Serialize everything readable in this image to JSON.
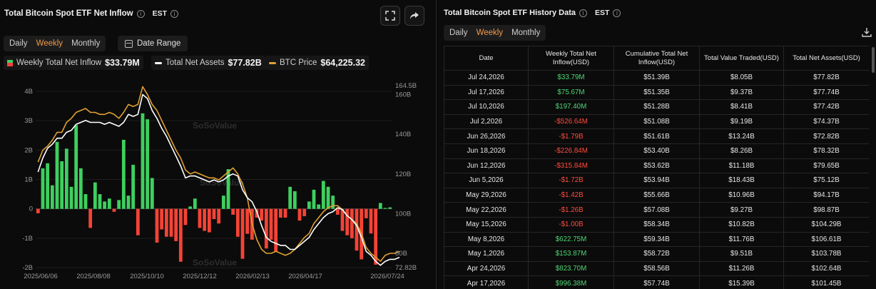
{
  "left": {
    "title": "Total Bitcoin Spot ETF Net Inflow",
    "timezone": "EST",
    "tabs": [
      "Daily",
      "Weekly",
      "Monthly"
    ],
    "active_tab": "Weekly",
    "date_range_label": "Date Range",
    "legend": {
      "inflow_label": "Weekly Total Net Inflow",
      "inflow_value": "$33.79M",
      "assets_label": "Total Net Assets",
      "assets_value": "$77.82B",
      "btc_label": "BTC Price",
      "btc_value": "$64,225.32"
    },
    "watermark": "SoSoValue",
    "colors": {
      "positive": "#3fcf5f",
      "negative": "#f44336",
      "assets_line": "#ffffff",
      "btc_line": "#e0a030",
      "accent": "#f2994a"
    }
  },
  "chart_data": {
    "type": "bar",
    "y_left_ticks": [
      "4B",
      "3B",
      "2B",
      "1B",
      "0",
      "-1B",
      "-2B"
    ],
    "y_right_ticks": [
      "164.5B",
      "160B",
      "140B",
      "120B",
      "100B",
      "80B",
      "72.82B"
    ],
    "x_ticks": [
      "2025/06/06",
      "2025/08/08",
      "2025/10/10",
      "2025/12/12",
      "2026/02/13",
      "2026/04/17",
      "2026/07/24"
    ],
    "ylim_left": [
      -2,
      4
    ],
    "ylim_right": [
      72.82,
      164.5
    ],
    "series": [
      {
        "name": "Weekly Total Net Inflow",
        "type": "bar",
        "values": [
          -0.15,
          1.38,
          1.55,
          0.8,
          2.28,
          1.62,
          2.05,
          0.75,
          2.85,
          1.38,
          0.5,
          -0.65,
          0.9,
          0.5,
          0.25,
          0.35,
          -0.1,
          0.3,
          2.35,
          0.45,
          1.5,
          -0.9,
          3.25,
          3.05,
          1.05,
          -1.15,
          -0.7,
          -0.95,
          -0.95,
          -1.1,
          -1.8,
          -0.55,
          0.08,
          0.35,
          -0.65,
          -0.75,
          -0.8,
          -0.35,
          -0.5,
          0.45,
          1.35,
          -0.2,
          -0.95,
          -1.7,
          -0.85,
          -1.05,
          -0.3,
          -0.4,
          -1.35,
          -1.05,
          -1.45,
          -0.3,
          -0.3,
          0.75,
          0.6,
          -0.4,
          -0.25,
          0.25,
          0.65,
          0.15,
          0.95,
          0.75,
          0.45,
          -0.2,
          -0.75,
          -0.9,
          -1.0,
          -1.42,
          -1.72,
          -0.32,
          -0.84,
          -1.9,
          0.2,
          0.03,
          0.05
        ]
      },
      {
        "name": "Total Net Assets",
        "type": "line",
        "values": [
          121,
          128,
          133,
          135,
          138,
          138,
          141,
          142,
          145,
          146,
          147,
          146,
          146,
          146,
          145,
          146,
          145,
          144,
          146,
          150,
          149,
          150,
          160,
          158,
          152,
          148,
          143,
          139,
          134,
          129,
          124,
          118,
          119,
          119,
          118,
          117,
          116,
          117,
          116,
          117,
          119,
          120,
          119,
          112,
          108,
          106,
          101,
          94,
          88,
          86,
          85,
          84,
          84,
          82,
          82,
          84,
          86,
          88,
          92,
          95,
          98,
          100,
          101,
          103,
          102,
          99,
          97,
          94,
          88,
          81,
          79,
          76,
          74,
          76,
          77,
          77,
          78
        ]
      },
      {
        "name": "BTC Price",
        "type": "line",
        "values": [
          126,
          132,
          134,
          137,
          141,
          141,
          146,
          148,
          151,
          152,
          153,
          151,
          151,
          150,
          150,
          151,
          150,
          148,
          151,
          155,
          154,
          155,
          164,
          160,
          155,
          152,
          147,
          142,
          137,
          132,
          128,
          122,
          120,
          121,
          120,
          119,
          118,
          118,
          117,
          119,
          121,
          123,
          120,
          115,
          108,
          95,
          87,
          82,
          80,
          80,
          81,
          80,
          79,
          80,
          82,
          85,
          88,
          90,
          95,
          98,
          101,
          103,
          104,
          104,
          102,
          99,
          97,
          95,
          90,
          83,
          80,
          78,
          76,
          79,
          80,
          80,
          81
        ]
      }
    ]
  },
  "right": {
    "title": "Total Bitcoin Spot ETF History Data",
    "timezone": "EST",
    "tabs": [
      "Daily",
      "Weekly",
      "Monthly"
    ],
    "active_tab": "Weekly",
    "columns": [
      "Date",
      "Weekly Total Net Inflow(USD)",
      "Cumulative Total Net Inflow(USD)",
      "Total Value Traded(USD)",
      "Total Net Assets(USD)"
    ],
    "rows": [
      [
        "Jul 24,2026",
        "$33.79M",
        "$51.39B",
        "$8.05B",
        "$77.82B"
      ],
      [
        "Jul 17,2026",
        "$75.67M",
        "$51.35B",
        "$9.37B",
        "$77.74B"
      ],
      [
        "Jul 10,2026",
        "$197.40M",
        "$51.28B",
        "$8.41B",
        "$77.42B"
      ],
      [
        "Jul 2,2026",
        "-$526.64M",
        "$51.08B",
        "$9.19B",
        "$74.37B"
      ],
      [
        "Jun 26,2026",
        "-$1.79B",
        "$51.61B",
        "$13.24B",
        "$72.82B"
      ],
      [
        "Jun 18,2026",
        "-$226.84M",
        "$53.40B",
        "$8.26B",
        "$78.32B"
      ],
      [
        "Jun 12,2026",
        "-$315.84M",
        "$53.62B",
        "$11.18B",
        "$79.65B"
      ],
      [
        "Jun 5,2026",
        "-$1.72B",
        "$53.94B",
        "$18.43B",
        "$75.12B"
      ],
      [
        "May 29,2026",
        "-$1.42B",
        "$55.66B",
        "$10.96B",
        "$94.17B"
      ],
      [
        "May 22,2026",
        "-$1.26B",
        "$57.08B",
        "$9.27B",
        "$98.87B"
      ],
      [
        "May 15,2026",
        "-$1.00B",
        "$58.34B",
        "$10.82B",
        "$104.29B"
      ],
      [
        "May 8,2026",
        "$622.75M",
        "$59.34B",
        "$11.76B",
        "$106.61B"
      ],
      [
        "May 1,2026",
        "$153.87M",
        "$58.72B",
        "$9.51B",
        "$103.78B"
      ],
      [
        "Apr 24,2026",
        "$823.70M",
        "$58.56B",
        "$11.26B",
        "$102.64B"
      ],
      [
        "Apr 17,2026",
        "$996.38M",
        "$57.74B",
        "$15.39B",
        "$101.45B"
      ]
    ]
  }
}
